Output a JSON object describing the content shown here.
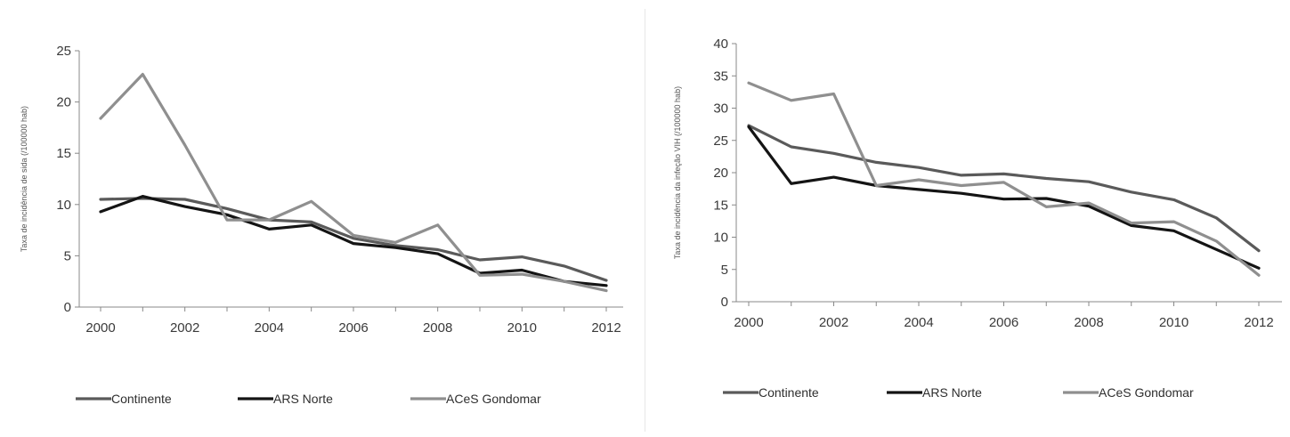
{
  "chart_data": [
    {
      "type": "line",
      "title": "",
      "xlabel": "",
      "ylabel": "Taxa de incidência de sida (/100000 hab)",
      "x": [
        2000,
        2001,
        2002,
        2003,
        2004,
        2005,
        2006,
        2007,
        2008,
        2009,
        2010,
        2011,
        2012
      ],
      "xticks": [
        2000,
        2002,
        2004,
        2006,
        2008,
        2010,
        2012
      ],
      "yticks": [
        0,
        5,
        10,
        15,
        20,
        25
      ],
      "ylim": [
        0,
        25
      ],
      "legend_position": "bottom",
      "series": [
        {
          "name": "Continente",
          "color": "#5a5a5a",
          "values": [
            10.5,
            10.6,
            10.5,
            9.6,
            8.5,
            8.3,
            6.7,
            6.0,
            5.6,
            4.6,
            4.9,
            4.0,
            2.6
          ]
        },
        {
          "name": "ARS Norte",
          "color": "#141414",
          "values": [
            9.3,
            10.8,
            9.8,
            9.0,
            7.6,
            8.0,
            6.2,
            5.8,
            5.2,
            3.3,
            3.6,
            2.5,
            2.1
          ]
        },
        {
          "name": "ACeS Gondomar",
          "color": "#8f8f8f",
          "values": [
            18.4,
            22.7,
            15.8,
            8.5,
            8.5,
            10.3,
            7.0,
            6.3,
            8.0,
            3.1,
            3.2,
            2.5,
            1.6
          ]
        }
      ]
    },
    {
      "type": "line",
      "title": "",
      "xlabel": "",
      "ylabel": "Taxa de incidência da infeção VIH (/100000 hab)",
      "x": [
        2000,
        2001,
        2002,
        2003,
        2004,
        2005,
        2006,
        2007,
        2008,
        2009,
        2010,
        2011,
        2012
      ],
      "xticks": [
        2000,
        2002,
        2004,
        2006,
        2008,
        2010,
        2012
      ],
      "yticks": [
        0,
        5,
        10,
        15,
        20,
        25,
        30,
        35,
        40
      ],
      "ylim": [
        0,
        40
      ],
      "legend_position": "bottom",
      "series": [
        {
          "name": "Continente",
          "color": "#5a5a5a",
          "values": [
            27.3,
            24.0,
            23.0,
            21.6,
            20.8,
            19.6,
            19.8,
            19.1,
            18.6,
            17.0,
            15.8,
            13.0,
            7.9
          ]
        },
        {
          "name": "ARS Norte",
          "color": "#141414",
          "values": [
            27.1,
            18.3,
            19.3,
            18.0,
            17.4,
            16.8,
            15.9,
            16.0,
            14.8,
            11.8,
            11.0,
            8.1,
            5.2
          ]
        },
        {
          "name": "ACeS Gondomar",
          "color": "#8f8f8f",
          "values": [
            33.9,
            31.2,
            32.2,
            18.0,
            18.9,
            18.0,
            18.5,
            14.7,
            15.3,
            12.2,
            12.4,
            9.4,
            4.1
          ]
        }
      ]
    }
  ]
}
